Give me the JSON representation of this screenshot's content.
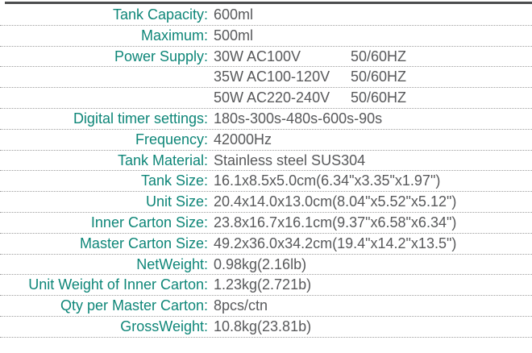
{
  "colors": {
    "label_accent": "#0E8678",
    "value_text": "#58595B",
    "divider_dots": "#9E9E9E",
    "top_bar": "#4C4D4F"
  },
  "table": {
    "rows": [
      {
        "label": "Tank Capacity:",
        "value": "600ml"
      },
      {
        "label": "Maximum:",
        "value": "500ml"
      },
      {
        "label": "Power Supply:",
        "value": "30W AC100V",
        "value2": "50/60HZ"
      },
      {
        "label": "",
        "value": "35W AC100-120V",
        "value2": "50/60HZ"
      },
      {
        "label": "",
        "value": "50W AC220-240V",
        "value2": "50/60HZ"
      },
      {
        "label": "Digital timer settings:",
        "value": "180s-300s-480s-600s-90s"
      },
      {
        "label": "Frequency:",
        "value": "42000Hz"
      },
      {
        "label": "Tank Material:",
        "value": "Stainless steel SUS304"
      },
      {
        "label": "Tank Size:",
        "value": "16.1x8.5x5.0cm(6.34\"x3.35\"x1.97\")"
      },
      {
        "label": "Unit Size:",
        "value": "20.4x14.0x13.0cm(8.04\"x5.52\"x5.12\")"
      },
      {
        "label": "Inner Carton Size:",
        "value": "23.8x16.7x16.1cm(9.37\"x6.58\"x6.34\")"
      },
      {
        "label": "Master Carton Size:",
        "value": "49.2x36.0x34.2cm(19.4\"x14.2\"x13.5\")"
      },
      {
        "label": "NetWeight:",
        "value": "0.98kg(2.16lb)"
      },
      {
        "label": "Unit Weight of Inner Carton:",
        "value": "1.23kg(2.721b)"
      },
      {
        "label": "Qty per Master Carton:",
        "value": "8pcs/ctn"
      },
      {
        "label": "GrossWeight:",
        "value": "10.8kg(23.81b)"
      }
    ]
  }
}
